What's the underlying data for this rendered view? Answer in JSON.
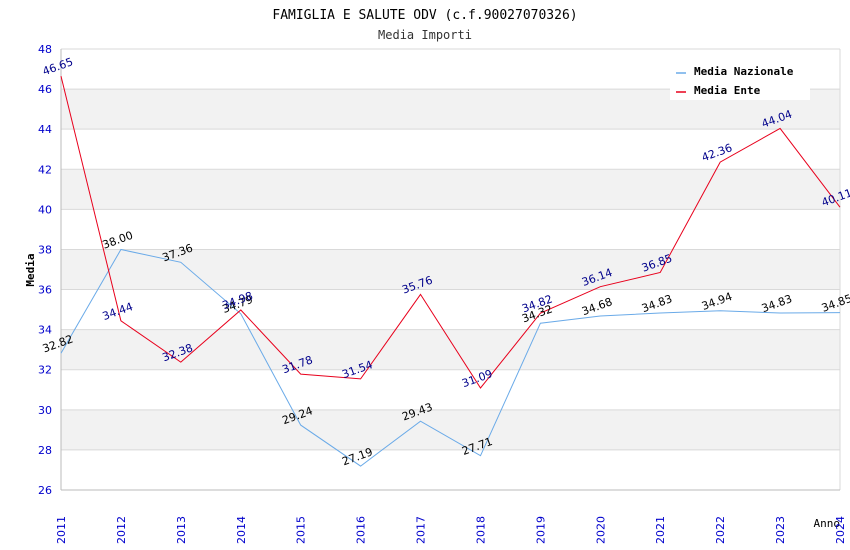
{
  "chart_data": {
    "type": "line",
    "title": "FAMIGLIA E SALUTE ODV (c.f.90027070326)",
    "subtitle": "Media Importi",
    "xlabel": "Anno",
    "ylabel": "Media",
    "ylim": [
      26,
      48
    ],
    "ytick_step": 2,
    "grid": true,
    "legend_position": "top-right",
    "x": [
      "2011",
      "2012",
      "2013",
      "2014",
      "2015",
      "2016",
      "2017",
      "2018",
      "2019",
      "2020",
      "2021",
      "2022",
      "2023",
      "2024"
    ],
    "series": [
      {
        "name": "Media Nazionale",
        "color": "#6aaae8",
        "label_color": "#000000",
        "values": [
          32.82,
          38.0,
          37.36,
          34.79,
          29.24,
          27.19,
          29.43,
          27.71,
          34.32,
          34.68,
          34.83,
          34.94,
          34.83,
          34.85
        ],
        "labels": [
          "32.82",
          "38.00",
          "37.36",
          "34.79",
          "29.24",
          "27.19",
          "29.43",
          "27.71",
          "34.32",
          "34.68",
          "34.83",
          "34.94",
          "34.83",
          "34.85"
        ]
      },
      {
        "name": "Media Ente",
        "color": "#e8001c",
        "label_color": "#00008b",
        "values": [
          46.65,
          34.44,
          32.38,
          34.98,
          31.78,
          31.54,
          35.76,
          31.09,
          34.82,
          36.14,
          36.85,
          42.36,
          44.04,
          40.11
        ],
        "labels": [
          "46.65",
          "34.44",
          "32.38",
          "34.98",
          "31.78",
          "31.54",
          "35.76",
          "31.09",
          "34.82",
          "36.14",
          "36.85",
          "42.36",
          "44.04",
          "40.11"
        ]
      }
    ],
    "colors": {
      "axis_text": "#0000cc",
      "band": "#f2f2f2",
      "grid": "#d9d9d9"
    }
  }
}
